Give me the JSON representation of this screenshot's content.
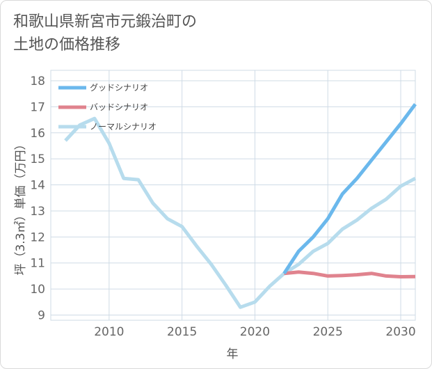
{
  "title_lines": [
    "和歌山県新宮市元鍛治町の",
    "土地の価格推移"
  ],
  "chart_data": {
    "type": "line",
    "title": "和歌山県新宮市元鍛治町の土地の価格推移",
    "xlabel": "年",
    "ylabel": "坪（3.3㎡）単価（万円）",
    "xlim": [
      2006,
      2031
    ],
    "ylim": [
      8.8,
      18.4
    ],
    "xticks": [
      2010,
      2015,
      2020,
      2025,
      2030
    ],
    "yticks": [
      9,
      10,
      11,
      12,
      13,
      14,
      15,
      16,
      17,
      18
    ],
    "grid": true,
    "legend_position": "top-left",
    "series": [
      {
        "name": "グッドシナリオ",
        "color": "#6bb8ec",
        "x": [
          2022,
          2023,
          2024,
          2025,
          2026,
          2027,
          2028,
          2029,
          2030,
          2031
        ],
        "values": [
          10.6,
          11.45,
          12.0,
          12.7,
          13.65,
          14.25,
          14.95,
          15.65,
          16.35,
          17.1
        ]
      },
      {
        "name": "バッドシナリオ",
        "color": "#e0838e",
        "x": [
          2022,
          2023,
          2024,
          2025,
          2026,
          2027,
          2028,
          2029,
          2030,
          2031
        ],
        "values": [
          10.6,
          10.65,
          10.6,
          10.5,
          10.52,
          10.55,
          10.6,
          10.5,
          10.47,
          10.48
        ]
      },
      {
        "name": "ノーマルシナリオ",
        "color": "#b7dced",
        "x": [
          2007,
          2008,
          2009,
          2010,
          2011,
          2012,
          2013,
          2014,
          2015,
          2016,
          2017,
          2018,
          2019,
          2020,
          2021,
          2022,
          2023,
          2024,
          2025,
          2026,
          2027,
          2028,
          2029,
          2030,
          2031
        ],
        "values": [
          15.7,
          16.3,
          16.55,
          15.6,
          14.25,
          14.2,
          13.3,
          12.7,
          12.4,
          11.65,
          10.95,
          10.15,
          9.3,
          9.5,
          10.1,
          10.6,
          10.95,
          11.45,
          11.75,
          12.3,
          12.65,
          13.1,
          13.45,
          13.95,
          14.25
        ]
      }
    ]
  }
}
